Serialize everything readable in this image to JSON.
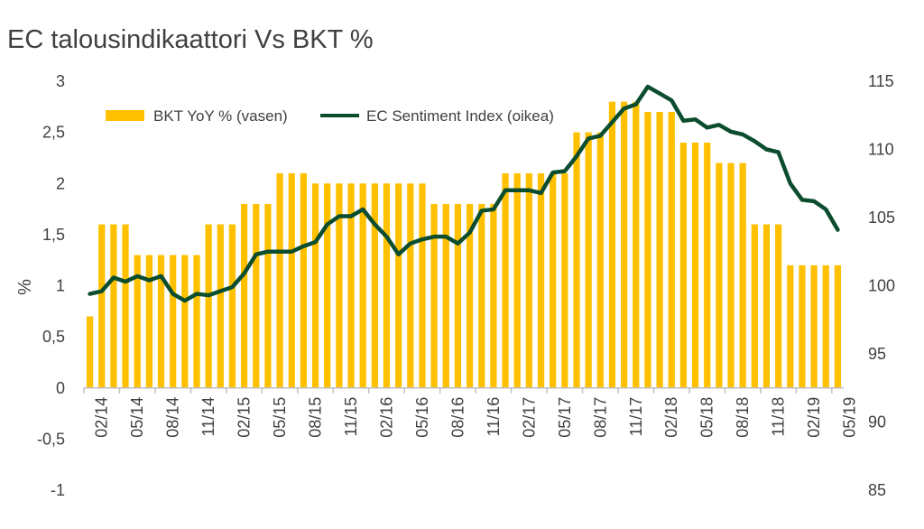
{
  "chart_data": {
    "type": "bar+line",
    "title": "EC talousindikaattori Vs BKT %",
    "ylabel_left": "%",
    "ylim_left": [
      -1,
      3
    ],
    "left_ticks": [
      "3",
      "2,5",
      "2",
      "1,5",
      "1",
      "0,5",
      "0",
      "-0,5",
      "-1"
    ],
    "ylim_right": [
      85,
      115
    ],
    "right_ticks": [
      "115",
      "110",
      "105",
      "100",
      "95",
      "90",
      "85"
    ],
    "x_tick_labels": [
      "02/14",
      "05/14",
      "08/14",
      "11/14",
      "02/15",
      "05/15",
      "08/15",
      "11/15",
      "02/16",
      "05/16",
      "08/16",
      "11/16",
      "02/17",
      "05/17",
      "08/17",
      "11/17",
      "02/18",
      "05/18",
      "08/18",
      "11/18",
      "02/19",
      "05/19"
    ],
    "series": [
      {
        "name": "BKT YoY % (vasen)",
        "type": "bar",
        "axis": "left",
        "color": "#FFC000",
        "values": [
          0.7,
          1.6,
          1.6,
          1.6,
          1.3,
          1.3,
          1.3,
          1.3,
          1.3,
          1.3,
          1.6,
          1.6,
          1.6,
          1.8,
          1.8,
          1.8,
          2.1,
          2.1,
          2.1,
          2.0,
          2.0,
          2.0,
          2.0,
          2.0,
          2.0,
          2.0,
          2.0,
          2.0,
          2.0,
          1.8,
          1.8,
          1.8,
          1.8,
          1.8,
          1.8,
          2.1,
          2.1,
          2.1,
          2.1,
          2.1,
          2.1,
          2.5,
          2.5,
          2.5,
          2.8,
          2.8,
          2.8,
          2.7,
          2.7,
          2.7,
          2.4,
          2.4,
          2.4,
          2.2,
          2.2,
          2.2,
          1.6,
          1.6,
          1.6,
          1.2,
          1.2,
          1.2,
          1.2,
          1.2
        ]
      },
      {
        "name": "EC Sentiment Index (oikea)",
        "type": "line",
        "axis": "right",
        "color": "#0B4D2E",
        "values": [
          99.4,
          99.6,
          100.6,
          100.3,
          100.7,
          100.4,
          100.7,
          99.4,
          98.9,
          99.4,
          99.3,
          99.6,
          99.9,
          100.9,
          102.3,
          102.5,
          102.5,
          102.5,
          102.9,
          103.2,
          104.5,
          105.1,
          105.1,
          105.6,
          104.5,
          103.6,
          102.3,
          103.1,
          103.4,
          103.6,
          103.6,
          103.1,
          103.9,
          105.5,
          105.6,
          107.0,
          107.0,
          107.0,
          106.8,
          108.3,
          108.4,
          109.5,
          110.8,
          111.0,
          112.0,
          113.0,
          113.3,
          114.6,
          114.1,
          113.6,
          112.1,
          112.2,
          111.6,
          111.8,
          111.3,
          111.1,
          110.6,
          110.0,
          109.8,
          107.5,
          106.3,
          106.2,
          105.6,
          104.1
        ]
      }
    ],
    "legend_position": "top"
  }
}
